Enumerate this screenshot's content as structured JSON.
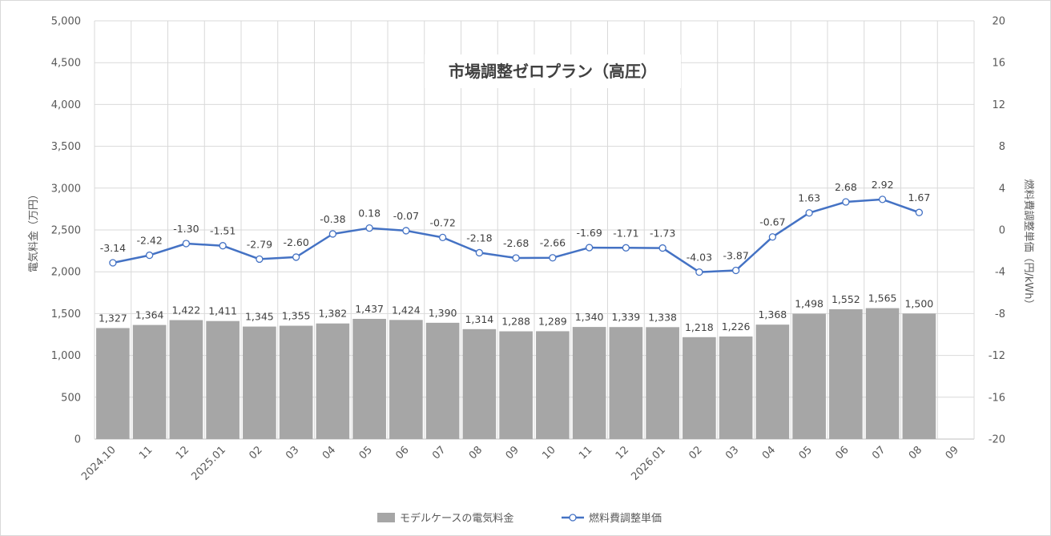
{
  "chart_data": {
    "type": "bar",
    "title": "市場調整ゼロプラン（高圧）",
    "categories": [
      "2024.10",
      "11",
      "12",
      "2025.01",
      "02",
      "03",
      "04",
      "05",
      "06",
      "07",
      "08",
      "09",
      "10",
      "11",
      "12",
      "2026.01",
      "02",
      "03",
      "04",
      "05",
      "06",
      "07",
      "08",
      "09"
    ],
    "series": [
      {
        "name": "モデルケースの電気料金",
        "type": "bar",
        "axis": "left",
        "color": "#a6a6a6",
        "values": [
          1327,
          1364,
          1422,
          1411,
          1345,
          1355,
          1382,
          1437,
          1424,
          1390,
          1314,
          1288,
          1289,
          1340,
          1339,
          1338,
          1218,
          1226,
          1368,
          1498,
          1552,
          1565,
          1500,
          null
        ],
        "labels": [
          "1,327",
          "1,364",
          "1,422",
          "1,411",
          "1,345",
          "1,355",
          "1,382",
          "1,437",
          "1,424",
          "1,390",
          "1,314",
          "1,288",
          "1,289",
          "1,340",
          "1,339",
          "1,338",
          "1,218",
          "1,226",
          "1,368",
          "1,498",
          "1,552",
          "1,565",
          "1,500",
          ""
        ]
      },
      {
        "name": "燃料費調整単価",
        "type": "line",
        "axis": "right",
        "color": "#4472c4",
        "values": [
          -3.14,
          -2.42,
          -1.3,
          -1.51,
          -2.79,
          -2.6,
          -0.38,
          0.18,
          -0.07,
          -0.72,
          -2.18,
          -2.68,
          -2.66,
          -1.69,
          -1.71,
          -1.73,
          -4.03,
          -3.87,
          -0.67,
          1.63,
          2.68,
          2.92,
          1.67,
          null
        ],
        "labels": [
          "-3.14",
          "-2.42",
          "-1.30",
          "-1.51",
          "-2.79",
          "-2.60",
          "-0.38",
          "0.18",
          "-0.07",
          "-0.72",
          "-2.18",
          "-2.68",
          "-2.66",
          "-1.69",
          "-1.71",
          "-1.73",
          "-4.03",
          "-3.87",
          "-0.67",
          "1.63",
          "2.68",
          "2.92",
          "1.67",
          ""
        ]
      }
    ],
    "y_left": {
      "label": "電気料金（万円）",
      "lim": [
        0,
        5000
      ],
      "ticks": [
        0,
        500,
        1000,
        1500,
        2000,
        2500,
        3000,
        3500,
        4000,
        4500,
        5000
      ],
      "tick_labels": [
        "0",
        "500",
        "1,000",
        "1,500",
        "2,000",
        "2,500",
        "3,000",
        "3,500",
        "4,000",
        "4,500",
        "5,000"
      ]
    },
    "y_right": {
      "label": "燃料費調整単価（円/kWh）",
      "lim": [
        -20,
        20
      ],
      "ticks": [
        -20,
        -16,
        -12,
        -8,
        -4,
        0,
        4,
        8,
        12,
        16,
        20
      ],
      "tick_labels": [
        "-20",
        "-16",
        "-12",
        "-8",
        "-4",
        "0",
        "4",
        "8",
        "12",
        "16",
        "20"
      ]
    },
    "grid": true,
    "legend_position": "bottom"
  }
}
